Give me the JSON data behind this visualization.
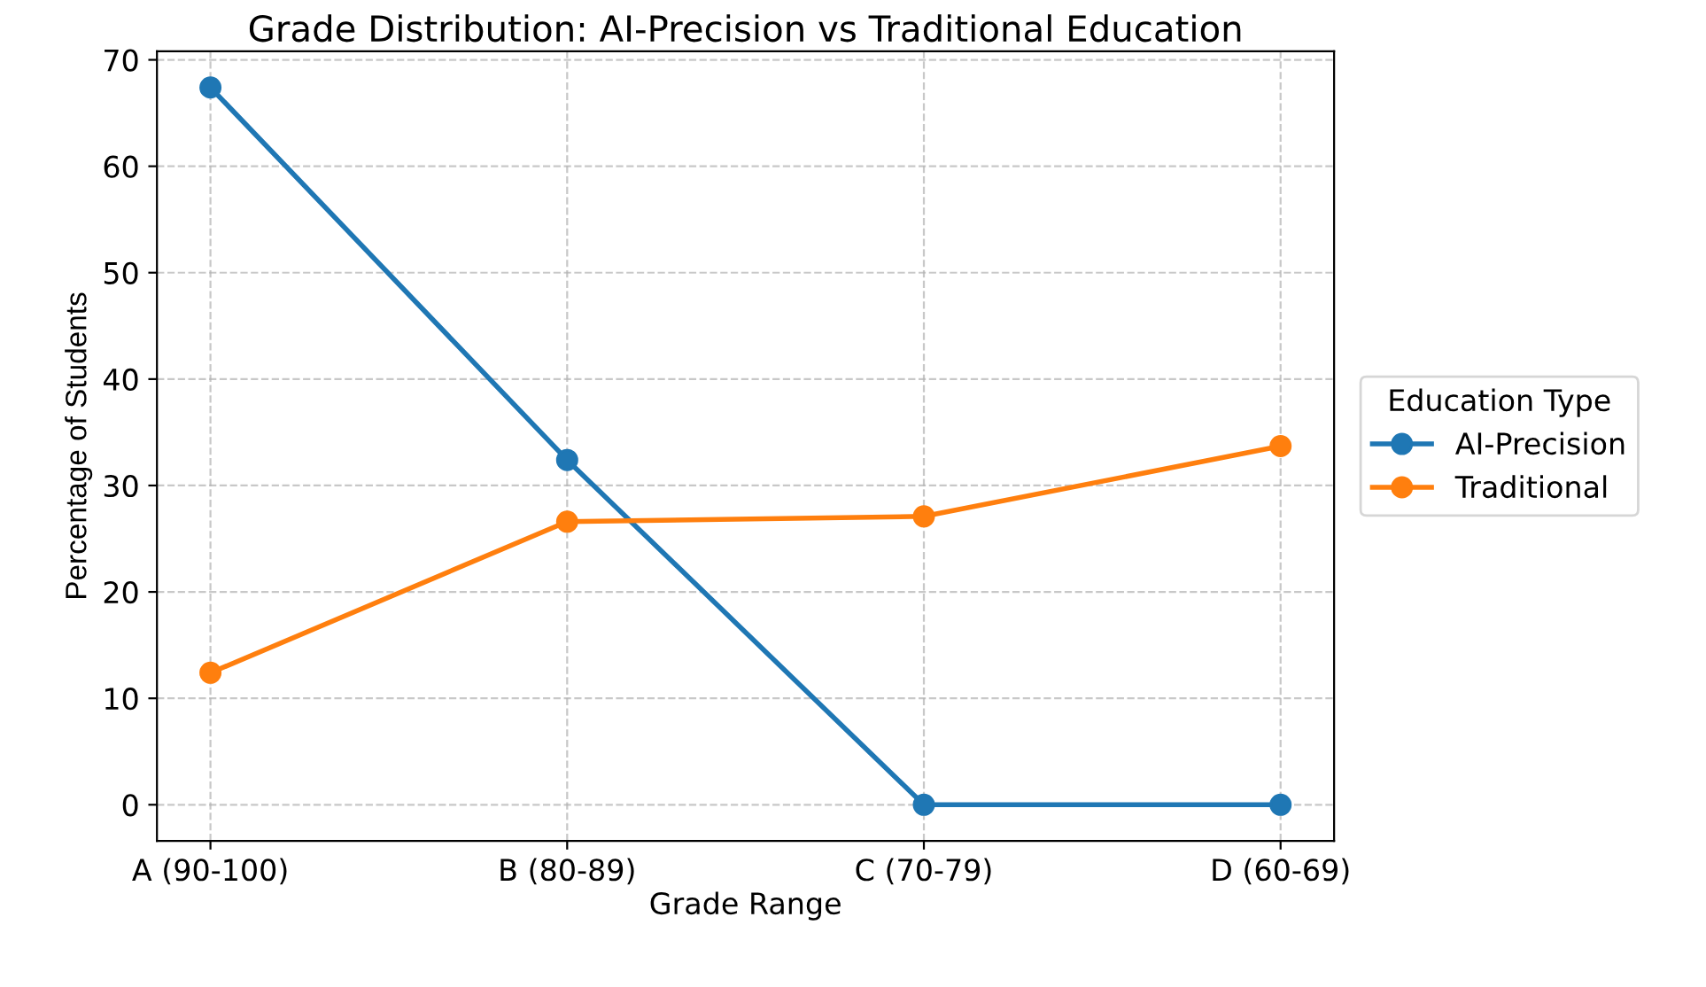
{
  "chart_data": {
    "type": "line",
    "title": "Grade Distribution: AI-Precision vs Traditional Education",
    "xlabel": "Grade Range",
    "ylabel": "Percentage of Students",
    "legend_title": "Education Type",
    "categories": [
      "A (90-100)",
      "B (80-89)",
      "C (70-79)",
      "D (60-69)"
    ],
    "series": [
      {
        "name": "AI-Precision",
        "color": "#1f77b4",
        "values": [
          67.4,
          32.4,
          0,
          0
        ]
      },
      {
        "name": "Traditional",
        "color": "#ff7f0e",
        "values": [
          12.4,
          26.6,
          27.1,
          33.7
        ]
      }
    ],
    "ylim": [
      -3.4,
      70.8
    ],
    "yticks": [
      0,
      10,
      20,
      30,
      40,
      50,
      60,
      70
    ],
    "grid": true,
    "legend": "right",
    "marker": "circle",
    "line_style": "solid"
  }
}
